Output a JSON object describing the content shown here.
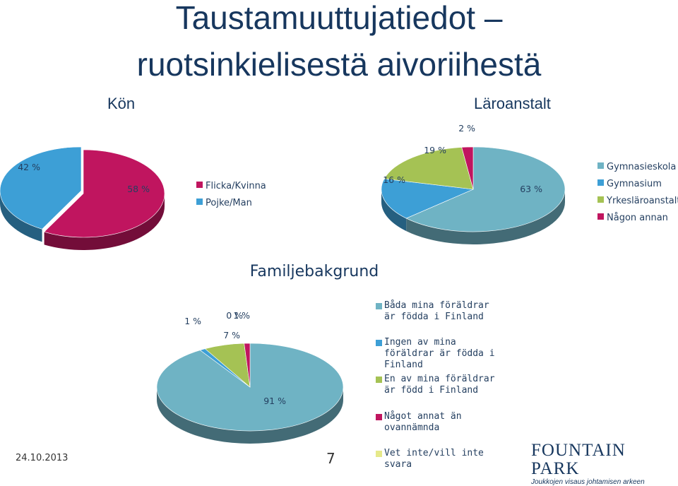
{
  "title_line1": "Taustamuuttujatiedot –",
  "title_line2": "ruotsinkielisestä aivoriihestä",
  "footer": {
    "date": "24.10.2013",
    "page": "7"
  },
  "logo": {
    "name": "FOUNTAIN PARK",
    "tagline": "Joukkojen visaus johtamisen arkeen"
  },
  "chart_data": [
    {
      "id": "kon",
      "type": "pie",
      "title": "Kön",
      "series": [
        {
          "name": "Flicka/Kvinna",
          "value": 58,
          "label": "58 %",
          "color": "#c0155f"
        },
        {
          "name": "Pojke/Man",
          "value": 42,
          "label": "42 %",
          "color": "#3d9fd6"
        }
      ]
    },
    {
      "id": "laro",
      "type": "pie",
      "title": "Läroanstalt",
      "series": [
        {
          "name": "Gymnasieskola",
          "value": 63,
          "label": "63 %",
          "color": "#6fb3c4"
        },
        {
          "name": "Gymnasium",
          "value": 16,
          "label": "16 %",
          "color": "#3d9fd6"
        },
        {
          "name": "Yrkesläroanstalt",
          "value": 19,
          "label": "19 %",
          "color": "#a5c254"
        },
        {
          "name": "Någon annan",
          "value": 2,
          "label": "2 %",
          "color": "#c0155f"
        }
      ]
    },
    {
      "id": "fam",
      "type": "pie",
      "title": "Familjebakgrund",
      "series": [
        {
          "name": "Båda mina föräldrar är födda i Finland",
          "value": 91,
          "label": "91 %",
          "color": "#6fb3c4"
        },
        {
          "name": "Ingen av mina föräldrar är födda i Finland",
          "value": 1,
          "label": "1 %",
          "color": "#3d9fd6"
        },
        {
          "name": "En av mina föräldrar är född i Finland",
          "value": 7,
          "label": "7 %",
          "color": "#a5c254"
        },
        {
          "name": "Något annat än ovannämnda",
          "value": 1,
          "label": "1 %",
          "color": "#c0155f"
        },
        {
          "name": "Vet inte/vill inte svara",
          "value": 0,
          "label": "0 %",
          "color": "#e6e98a"
        }
      ]
    }
  ]
}
